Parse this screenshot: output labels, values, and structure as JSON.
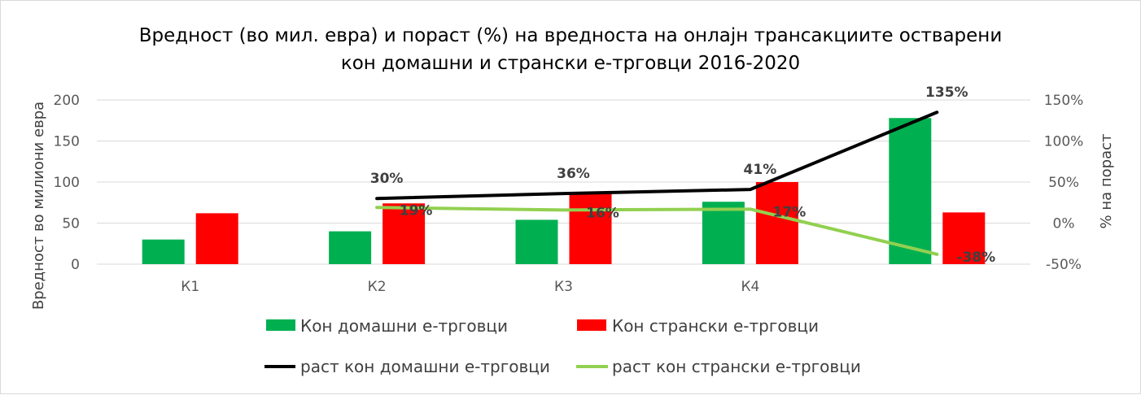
{
  "chart_data": {
    "type": "bar",
    "title_lines": [
      "Вредност (во мил. евра) и пораст (%) на вредноста на онлајн трансакциите остварени",
      "кон домашни и странски е-трговци 2016-2020"
    ],
    "categories": [
      "К1",
      "К2",
      "К3",
      "К4",
      ""
    ],
    "ylabel": "Вредност во милиони евра",
    "y2label": "% на пораст",
    "ylim": [
      0,
      200
    ],
    "yticks": [
      "200",
      "150",
      "100",
      "50",
      "0"
    ],
    "y2lim": [
      -50,
      150
    ],
    "y2ticks": [
      "150%",
      "100%",
      "50%",
      "0%",
      "-50%"
    ],
    "gridlines": true,
    "legend_position": "bottom",
    "series": [
      {
        "name": "Кон домашни е-трговци",
        "type": "bar",
        "axis": "left",
        "color": "#00b050",
        "values": [
          30,
          40,
          54,
          76,
          178
        ]
      },
      {
        "name": "Кон странски е-трговци",
        "type": "bar",
        "axis": "left",
        "color": "#ff0000",
        "values": [
          62,
          74,
          87,
          100,
          63
        ]
      },
      {
        "name": "раст кон домашни е-трговци",
        "type": "line",
        "axis": "right",
        "color": "#000000",
        "values": [
          null,
          30,
          36,
          41,
          135
        ],
        "labels": [
          null,
          "30%",
          "36%",
          "41%",
          "135%"
        ]
      },
      {
        "name": "раст кон странски е-трговци",
        "type": "line",
        "axis": "right",
        "color": "#92d050",
        "values": [
          null,
          19,
          16,
          17,
          -38
        ],
        "labels": [
          null,
          "19%",
          "16%",
          "17%",
          "-38%"
        ]
      }
    ]
  }
}
